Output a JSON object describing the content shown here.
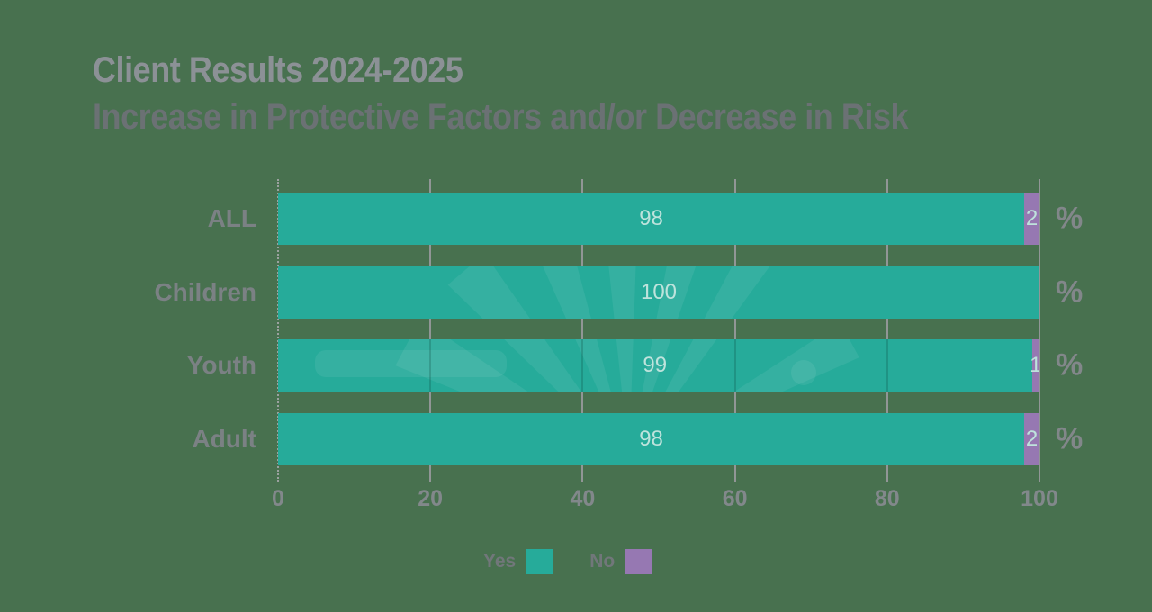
{
  "title": {
    "line1": "Client Results 2024-2025",
    "line2": "Increase in Protective Factors and/or Decrease in Risk"
  },
  "chart_data": {
    "type": "bar",
    "orientation": "horizontal",
    "stacked": true,
    "title": "Client Results 2024-2025",
    "subtitle": "Increase in Protective Factors and/or Decrease in Risk",
    "categories": [
      "ALL",
      "Children",
      "Youth",
      "Adult"
    ],
    "series": [
      {
        "name": "Yes",
        "color": "#26AB9A",
        "values": [
          98,
          100,
          99,
          98
        ]
      },
      {
        "name": "No",
        "color": "#9678B2",
        "values": [
          2,
          0,
          1,
          2
        ]
      }
    ],
    "value_suffix": "%",
    "xlim": [
      0,
      100
    ],
    "x_ticks": [
      0,
      20,
      40,
      60,
      80,
      100
    ],
    "grid": "vertical",
    "legend": {
      "position": "bottom",
      "entries": [
        {
          "label": "Yes",
          "color": "#26AB9A"
        },
        {
          "label": "No",
          "color": "#9678B2"
        }
      ]
    }
  },
  "colors": {
    "background": "#48714F",
    "bar_yes": "#26AB9A",
    "bar_no": "#9678B2",
    "title_line1": "#8C9196",
    "title_line2": "#6B7174",
    "axis_text": "#82888B",
    "category_text": "#7B8184",
    "value_text": "#BEE3DC",
    "gridline": "#919696",
    "legend_text": "#71777A",
    "percent_text": "#82878A"
  }
}
